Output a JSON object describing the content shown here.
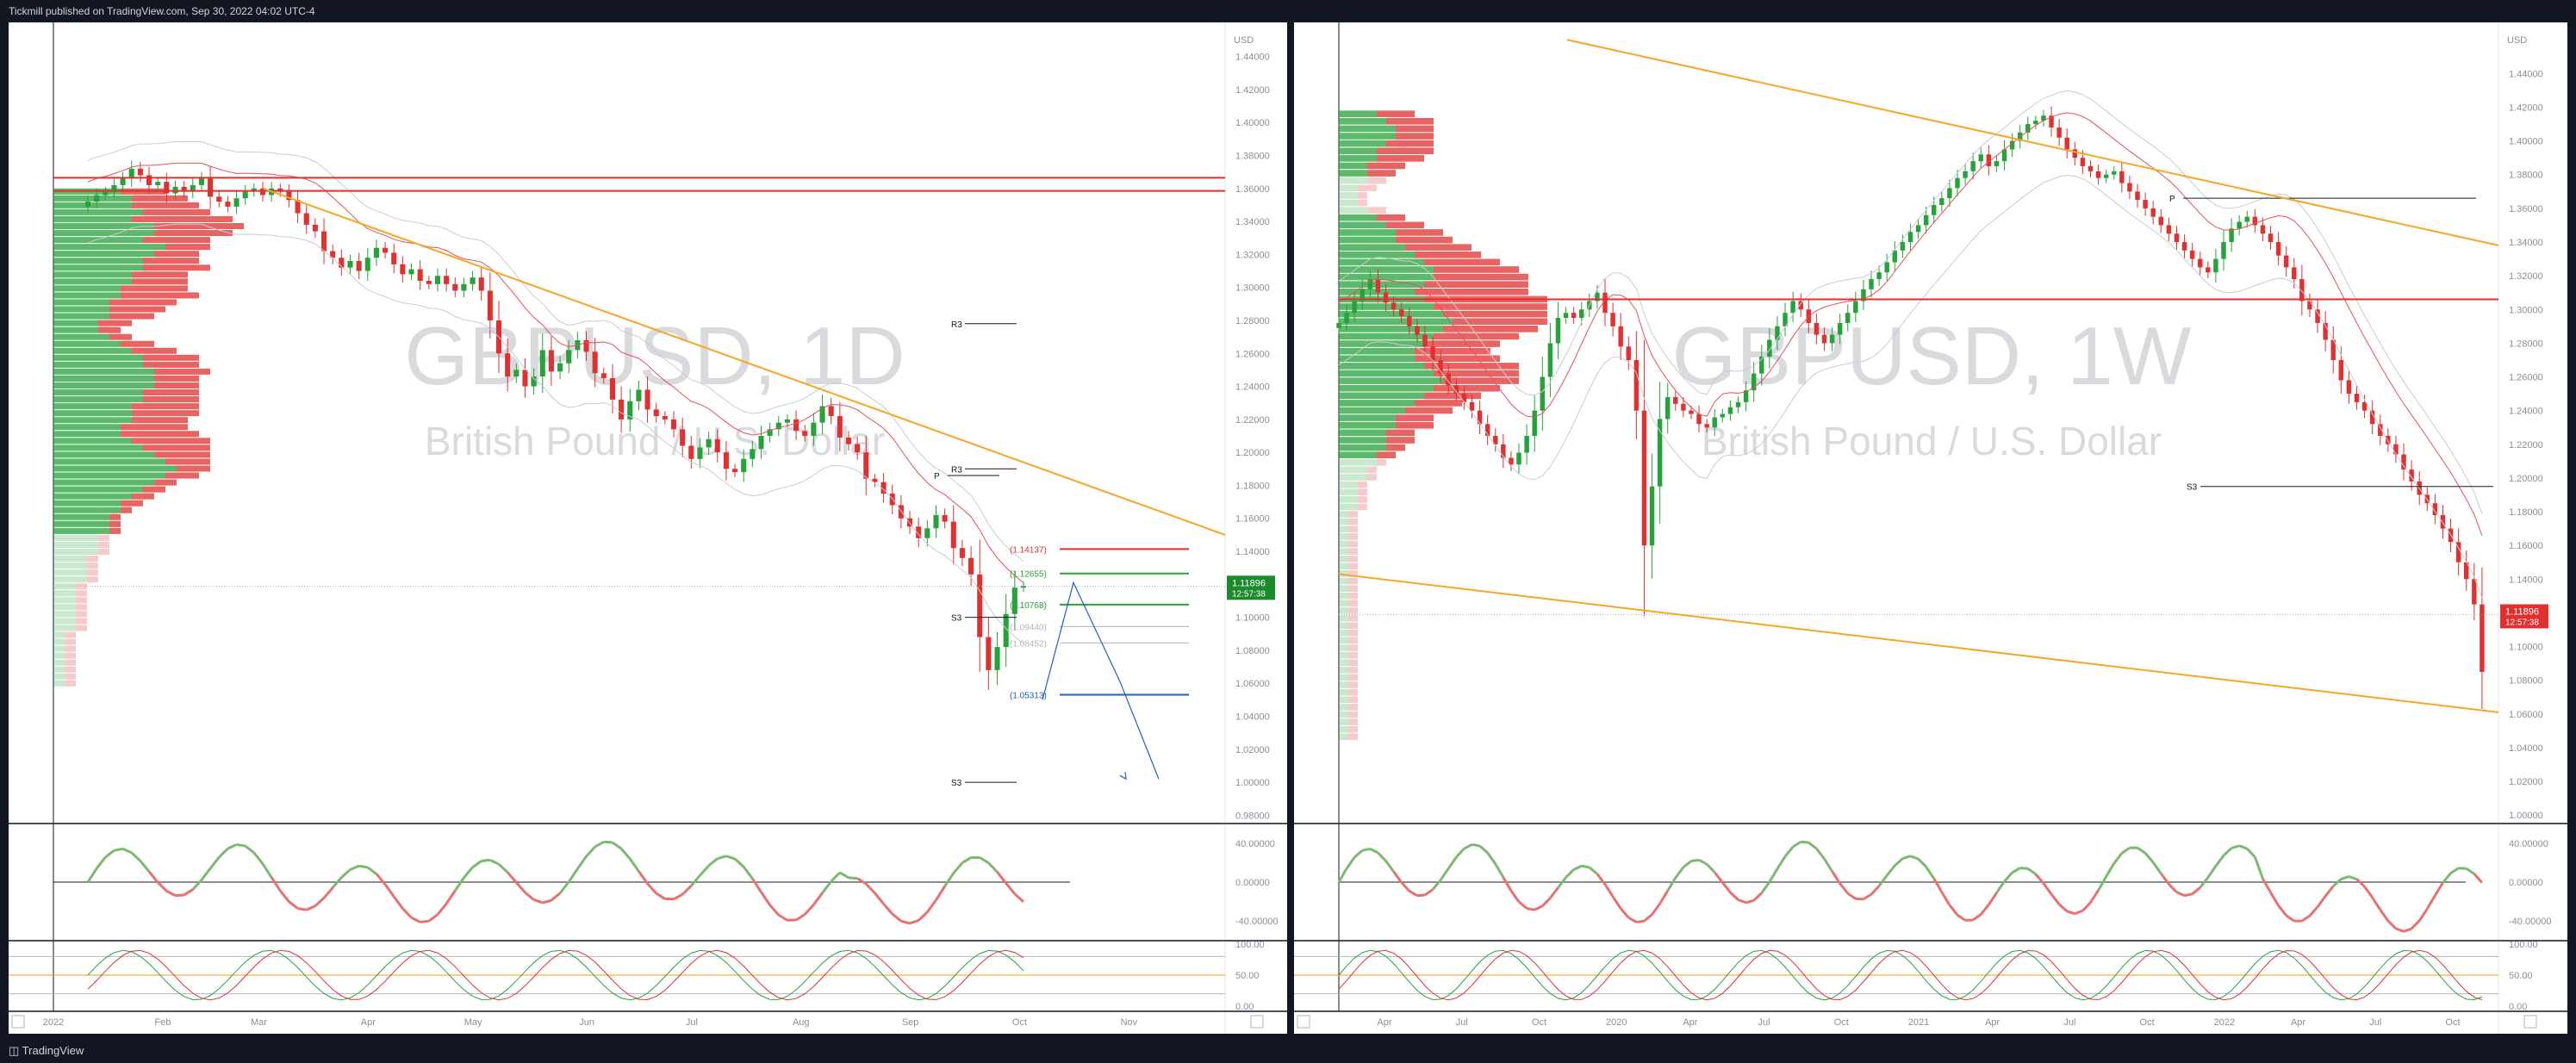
{
  "header": {
    "published": "Tickmill published on TradingView.com, Sep 30, 2022 04:02 UTC-4"
  },
  "footer": {
    "logo": "TradingView"
  },
  "colors": {
    "up": "#26a23a",
    "down": "#e0302f",
    "trend": "#f5a623",
    "pivot": "#000000",
    "blue": "#1f5fbf"
  },
  "chart_data": [
    {
      "type": "candlestick",
      "symbol": "GBPUSD, 1D",
      "subtitle": "British Pound / U.S. Dollar",
      "currency": "USD",
      "y_ticks": [
        "1.44000",
        "1.42000",
        "1.40000",
        "1.38000",
        "1.36000",
        "1.34000",
        "1.32000",
        "1.30000",
        "1.28000",
        "1.26000",
        "1.24000",
        "1.22000",
        "1.20000",
        "1.18000",
        "1.16000",
        "1.14000",
        "1.12000",
        "1.10000",
        "1.08000",
        "1.06000",
        "1.04000",
        "1.02000",
        "1.00000",
        "0.98000"
      ],
      "ylim": [
        0.975,
        1.445
      ],
      "x_ticks": [
        "2022",
        "Feb",
        "Mar",
        "Apr",
        "May",
        "Jun",
        "Jul",
        "Aug",
        "Sep",
        "Oct",
        "Nov"
      ],
      "x_tick_pos": [
        0.0,
        12.5,
        23.5,
        36.0,
        48.0,
        61.0,
        73.0,
        85.5,
        98.0,
        110.5,
        123.0
      ],
      "x_range": [
        0,
        134
      ],
      "last_price": "1.11896",
      "last_price_value": 1.11896,
      "countdown": "12:57:38",
      "closes": [
        1.352,
        1.356,
        1.358,
        1.362,
        1.366,
        1.372,
        1.368,
        1.362,
        1.364,
        1.357,
        1.361,
        1.358,
        1.362,
        1.366,
        1.355,
        1.352,
        1.349,
        1.354,
        1.358,
        1.36,
        1.356,
        1.36,
        1.358,
        1.353,
        1.345,
        1.338,
        1.334,
        1.322,
        1.318,
        1.312,
        1.316,
        1.31,
        1.318,
        1.324,
        1.321,
        1.314,
        1.308,
        1.311,
        1.304,
        1.302,
        1.307,
        1.302,
        1.298,
        1.302,
        1.306,
        1.298,
        1.28,
        1.26,
        1.246,
        1.25,
        1.24,
        1.246,
        1.262,
        1.249,
        1.254,
        1.262,
        1.268,
        1.261,
        1.248,
        1.245,
        1.232,
        1.22,
        1.231,
        1.238,
        1.226,
        1.222,
        1.22,
        1.214,
        1.204,
        1.196,
        1.203,
        1.208,
        1.2,
        1.19,
        1.188,
        1.196,
        1.202,
        1.21,
        1.214,
        1.218,
        1.22,
        1.213,
        1.21,
        1.218,
        1.228,
        1.222,
        1.209,
        1.205,
        1.2,
        1.184,
        1.182,
        1.175,
        1.168,
        1.16,
        1.155,
        1.148,
        1.154,
        1.162,
        1.158,
        1.142,
        1.136,
        1.126,
        1.088,
        1.068,
        1.082,
        1.102,
        1.118,
        1.119
      ],
      "profile_top": 1.36,
      "profile_step": 0.0042,
      "profile_up": [
        6,
        7,
        7,
        8,
        7,
        9,
        9,
        8,
        10,
        9,
        8,
        8,
        7,
        7,
        6,
        6,
        5,
        5,
        5,
        4,
        4,
        5,
        6,
        7,
        8,
        8,
        9,
        9,
        9,
        8,
        8,
        7,
        7,
        7,
        6,
        6,
        7,
        8,
        9,
        10,
        11,
        10,
        9,
        8,
        7,
        6,
        6,
        5,
        5,
        5,
        4,
        4,
        4,
        3,
        3,
        3,
        3,
        2,
        2,
        2,
        2,
        2,
        2,
        2,
        1,
        1,
        1,
        1,
        1,
        1,
        1,
        1
      ],
      "profile_down": [
        4,
        5,
        6,
        6,
        9,
        8,
        7,
        6,
        4,
        4,
        5,
        6,
        5,
        5,
        6,
        7,
        6,
        5,
        4,
        3,
        2,
        2,
        3,
        4,
        5,
        5,
        5,
        4,
        4,
        5,
        5,
        6,
        6,
        5,
        6,
        7,
        7,
        6,
        5,
        4,
        3,
        3,
        2,
        2,
        2,
        2,
        1,
        1,
        1,
        1,
        1,
        1,
        1,
        1,
        1,
        1,
        1,
        1,
        1,
        1,
        1,
        1,
        1,
        1,
        1,
        1,
        1,
        1,
        1,
        1,
        1,
        1
      ],
      "resistance": [
        1.3665,
        1.3585
      ],
      "trendline": [
        [
          24,
          1.36
        ],
        [
          134,
          1.15
        ]
      ],
      "pivots": [
        {
          "label": "R3",
          "value": 1.278
        },
        {
          "label": "R3",
          "value": 1.19
        },
        {
          "label": "P",
          "value": 1.186
        },
        {
          "label": "S3",
          "value": 1.1
        },
        {
          "label": "S3",
          "value": 1.0
        }
      ],
      "fib_levels": [
        {
          "label": "(1.14137)",
          "value": 1.1414,
          "color": "#e0302f"
        },
        {
          "label": "(1.12655)",
          "value": 1.1266,
          "color": "#26a23a"
        },
        {
          "label": "(1.10768)",
          "value": 1.1077,
          "color": "#26a23a"
        },
        {
          "label": "(1.09440)",
          "value": 1.0944,
          "color": "#b0b4bc"
        },
        {
          "label": "(1.08452)",
          "value": 1.0845,
          "color": "#b0b4bc"
        },
        {
          "label": "(1.05313)",
          "value": 1.0531,
          "color": "#1f5fbf"
        }
      ],
      "projection": [
        [
          112,
          1.05
        ],
        [
          114,
          1.121
        ],
        [
          117,
          1.061
        ],
        [
          119.5,
          1.002
        ]
      ],
      "osc1": {
        "ticks": [
          "40.00000",
          "0.00000",
          "-40.00000"
        ],
        "range": [
          -55,
          55
        ]
      },
      "osc2": {
        "ticks": [
          "100.00",
          "50.00",
          "0.00"
        ],
        "range": [
          0,
          100
        ]
      }
    },
    {
      "type": "candlestick",
      "symbol": "GBPUSD, 1W",
      "subtitle": "British Pound / U.S. Dollar",
      "currency": "USD",
      "y_ticks": [
        "1.44000",
        "1.42000",
        "1.40000",
        "1.38000",
        "1.36000",
        "1.34000",
        "1.32000",
        "1.30000",
        "1.28000",
        "1.26000",
        "1.24000",
        "1.22000",
        "1.20000",
        "1.18000",
        "1.16000",
        "1.14000",
        "1.12000",
        "1.10000",
        "1.08000",
        "1.06000",
        "1.04000",
        "1.02000",
        "1.00000"
      ],
      "ylim": [
        0.995,
        1.455
      ],
      "x_ticks": [
        "Apr",
        "Jul",
        "Oct",
        "2020",
        "Apr",
        "Jul",
        "Oct",
        "2021",
        "Apr",
        "Jul",
        "Oct",
        "2022",
        "Apr",
        "Jul",
        "Oct"
      ],
      "x_tick_pos": [
        13,
        35,
        57,
        79,
        100,
        121,
        143,
        165,
        186,
        208,
        230,
        252,
        273,
        295,
        317
      ],
      "x_range": [
        0,
        330
      ],
      "last_price": "1.11896",
      "last_price_value": 1.11896,
      "countdown": "12:57:38",
      "closes": [
        1.292,
        1.298,
        1.305,
        1.312,
        1.318,
        1.31,
        1.304,
        1.3,
        1.296,
        1.29,
        1.285,
        1.278,
        1.27,
        1.262,
        1.255,
        1.25,
        1.245,
        1.24,
        1.232,
        1.225,
        1.22,
        1.212,
        1.208,
        1.215,
        1.225,
        1.24,
        1.26,
        1.28,
        1.295,
        1.298,
        1.295,
        1.3,
        1.305,
        1.31,
        1.298,
        1.29,
        1.278,
        1.27,
        1.24,
        1.16,
        1.195,
        1.235,
        1.248,
        1.244,
        1.24,
        1.238,
        1.232,
        1.23,
        1.236,
        1.238,
        1.242,
        1.245,
        1.252,
        1.262,
        1.272,
        1.282,
        1.29,
        1.298,
        1.305,
        1.3,
        1.292,
        1.285,
        1.28,
        1.285,
        1.292,
        1.298,
        1.305,
        1.312,
        1.318,
        1.322,
        1.328,
        1.335,
        1.34,
        1.346,
        1.35,
        1.356,
        1.362,
        1.366,
        1.372,
        1.378,
        1.382,
        1.388,
        1.392,
        1.385,
        1.388,
        1.395,
        1.4,
        1.405,
        1.41,
        1.412,
        1.415,
        1.408,
        1.402,
        1.395,
        1.39,
        1.385,
        1.382,
        1.378,
        1.38,
        1.382,
        1.375,
        1.37,
        1.365,
        1.36,
        1.355,
        1.35,
        1.345,
        1.34,
        1.335,
        1.33,
        1.325,
        1.322,
        1.33,
        1.34,
        1.348,
        1.352,
        1.355,
        1.35,
        1.345,
        1.34,
        1.332,
        1.325,
        1.318,
        1.305,
        1.3,
        1.292,
        1.282,
        1.27,
        1.258,
        1.25,
        1.245,
        1.24,
        1.232,
        1.225,
        1.22,
        1.214,
        1.205,
        1.198,
        1.19,
        1.185,
        1.178,
        1.17,
        1.162,
        1.15,
        1.14,
        1.125,
        1.085
      ],
      "profile_top": 1.44,
      "profile_step": 0.0044,
      "profile_up": [
        0,
        0,
        0,
        0,
        0,
        4,
        5,
        6,
        6,
        5,
        4,
        4,
        3,
        3,
        3,
        2,
        2,
        2,
        3,
        4,
        5,
        6,
        6,
        7,
        8,
        9,
        10,
        10,
        9,
        8,
        9,
        10,
        11,
        12,
        11,
        10,
        9,
        8,
        8,
        9,
        10,
        11,
        10,
        9,
        8,
        7,
        6,
        6,
        5,
        5,
        5,
        4,
        4,
        3,
        3,
        2,
        2,
        2,
        2,
        1,
        1,
        1,
        1,
        1,
        1,
        1,
        1,
        1,
        1,
        1,
        1,
        1,
        1,
        1,
        1,
        1,
        1,
        1,
        1,
        1,
        1,
        1,
        1,
        1,
        1,
        1,
        1,
        1,
        1,
        1
      ],
      "profile_down": [
        0,
        0,
        0,
        0,
        0,
        4,
        5,
        4,
        4,
        5,
        6,
        5,
        4,
        3,
        2,
        2,
        1,
        1,
        2,
        3,
        4,
        5,
        6,
        7,
        7,
        8,
        9,
        10,
        11,
        12,
        13,
        12,
        11,
        10,
        10,
        9,
        8,
        8,
        9,
        10,
        9,
        8,
        7,
        6,
        5,
        5,
        4,
        4,
        3,
        3,
        2,
        2,
        1,
        1,
        1,
        1,
        1,
        1,
        1,
        1,
        1,
        1,
        1,
        1,
        1,
        1,
        1,
        1,
        1,
        1,
        1,
        1,
        1,
        1,
        1,
        1,
        1,
        1,
        1,
        1,
        1,
        1,
        1,
        1,
        1,
        1,
        1,
        1,
        1,
        1
      ],
      "resistance": [
        1.306
      ],
      "trendline_top": [
        [
          65,
          1.46
        ],
        [
          330,
          1.338
        ]
      ],
      "trendline_bottom": [
        [
          0,
          1.143
        ],
        [
          330,
          1.061
        ]
      ],
      "pivots": [
        {
          "label": "P",
          "value": 1.366
        },
        {
          "label": "S3",
          "value": 1.195
        }
      ],
      "osc1": {
        "ticks": [
          "40.00000",
          "0.00000",
          "-40.00000"
        ],
        "range": [
          -55,
          55
        ]
      },
      "osc2": {
        "ticks": [
          "100.00",
          "50.00",
          "0.00"
        ],
        "range": [
          0,
          100
        ]
      }
    }
  ]
}
